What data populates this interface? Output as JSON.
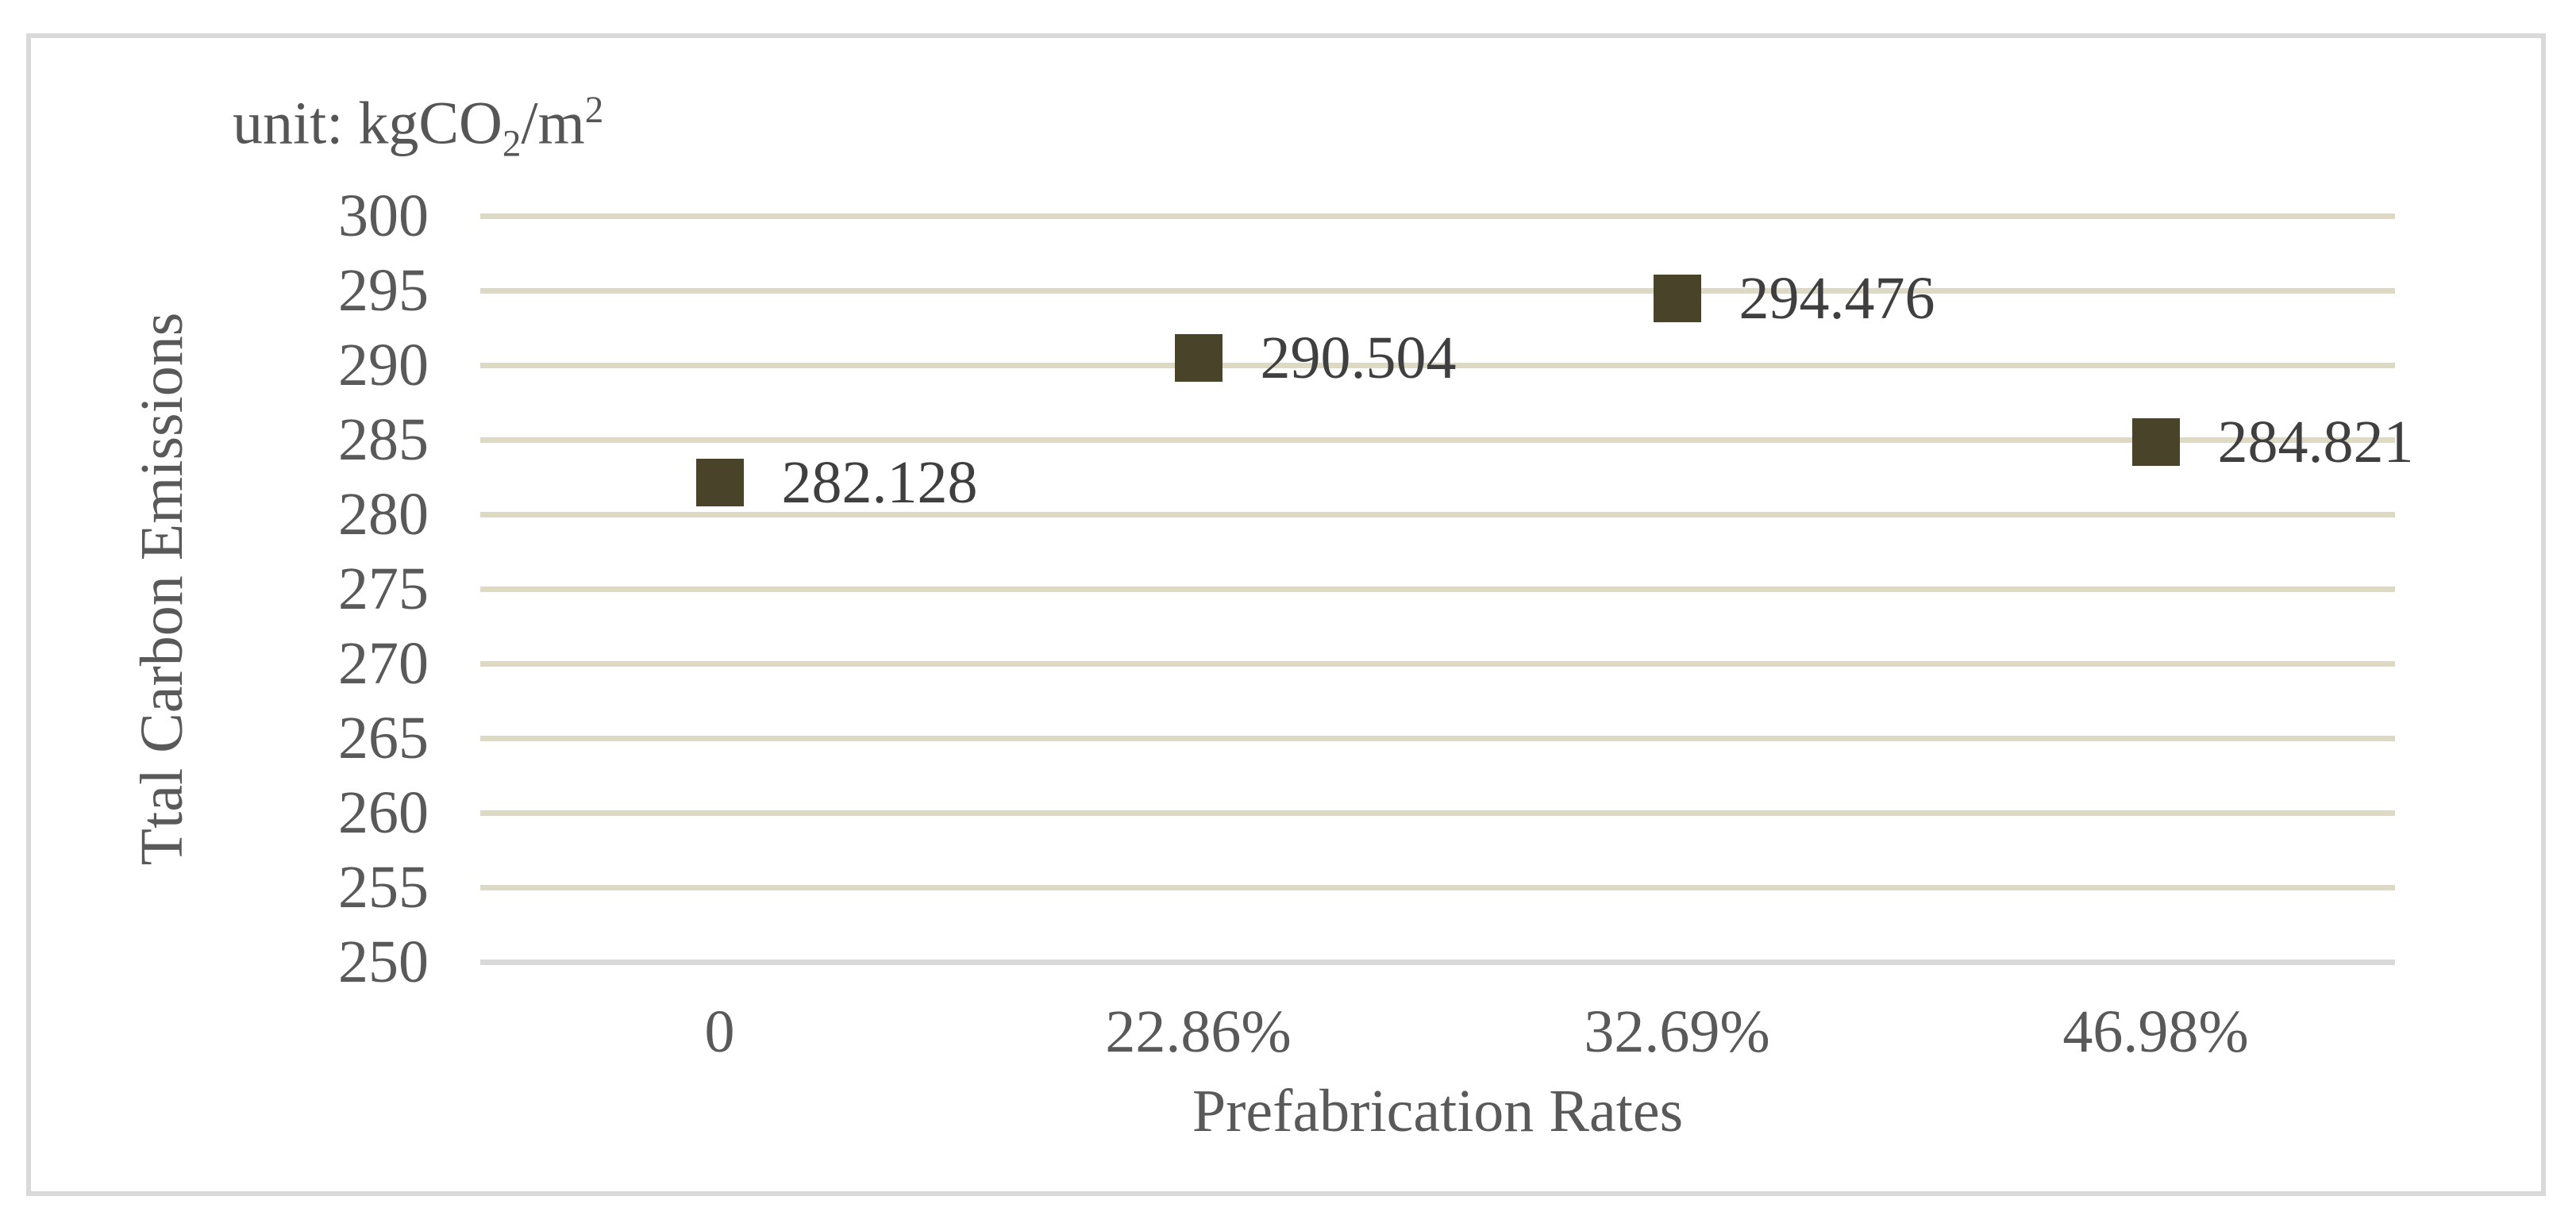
{
  "chart": {
    "unit_label": {
      "prefix": "unit: kgCO",
      "subscript": "2",
      "mid": "/m",
      "superscript": "2"
    },
    "y_axis_title": "Ttal Carbon Emissions",
    "x_axis_title": "Prefabrication Rates"
  },
  "chart_data": {
    "type": "scatter",
    "title": "unit: kgCO₂/m²",
    "xlabel": "Prefabrication Rates",
    "ylabel": "Ttal Carbon Emissions",
    "categories": [
      "0",
      "22.86%",
      "32.69%",
      "46.98%"
    ],
    "values": [
      282.128,
      290.504,
      294.476,
      284.821
    ],
    "data_labels": [
      "282.128",
      "290.504",
      "294.476",
      "284.821"
    ],
    "ylim": [
      250,
      300
    ],
    "y_ticks": [
      300,
      295,
      290,
      285,
      280,
      275,
      270,
      265,
      260,
      255,
      250
    ],
    "grid": "horizontal-only",
    "legend": "none",
    "marker_shape": "square",
    "colors": {
      "marker": "#49432a",
      "gridline": "#ddd9c3",
      "axis_line": "#d9d9d9",
      "frame_border": "#d9d9d9",
      "tick_text": "#595959",
      "data_label_text": "#3f3f3f"
    }
  }
}
